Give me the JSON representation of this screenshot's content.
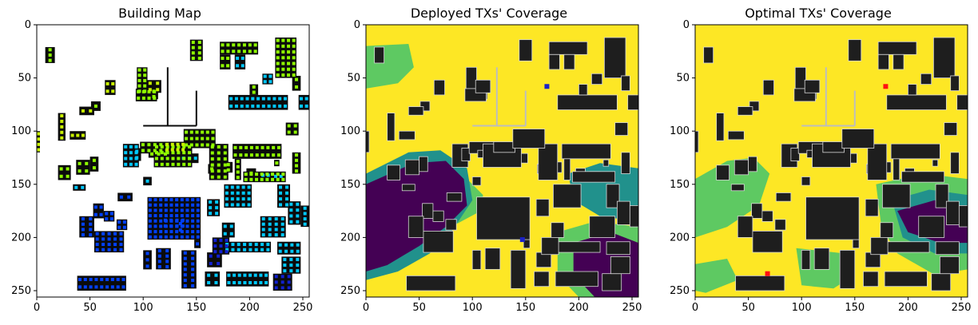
{
  "panels": [
    {
      "id": "building",
      "title": "Building Map",
      "mode": "building"
    },
    {
      "id": "deployed",
      "title": "Deployed TXs' Coverage",
      "mode": "coverage",
      "tx_markers": [
        {
          "x": 170,
          "y": 58,
          "color": "#1b22c8"
        },
        {
          "x": 147,
          "y": 202,
          "color": "#1b22c8"
        }
      ]
    },
    {
      "id": "optimal",
      "title": "Optimal TXs' Coverage",
      "mode": "coverage",
      "tx_markers": [
        {
          "x": 179,
          "y": 58,
          "color": "#ff1010"
        },
        {
          "x": 68,
          "y": 234,
          "color": "#ff1010"
        }
      ]
    }
  ],
  "axes": {
    "x_ticks": [
      "0",
      "50",
      "100",
      "150",
      "200",
      "250"
    ],
    "y_ticks": [
      "0",
      "50",
      "100",
      "150",
      "200",
      "250"
    ],
    "range": [
      0,
      256
    ]
  },
  "colors": {
    "building_fill": "#0b0b0b",
    "coverage_fill": "#1e1e1e",
    "coverage_high": "#fde725",
    "coverage_mid": "#5ec962",
    "coverage_low": "#21918c",
    "coverage_none": "#440154",
    "marker_green": "#8fff00",
    "marker_lime": "#c8f000",
    "marker_cyan": "#00c8ff",
    "marker_blue": "#0040ff",
    "marker_darkblue": "#1020d0"
  }
}
